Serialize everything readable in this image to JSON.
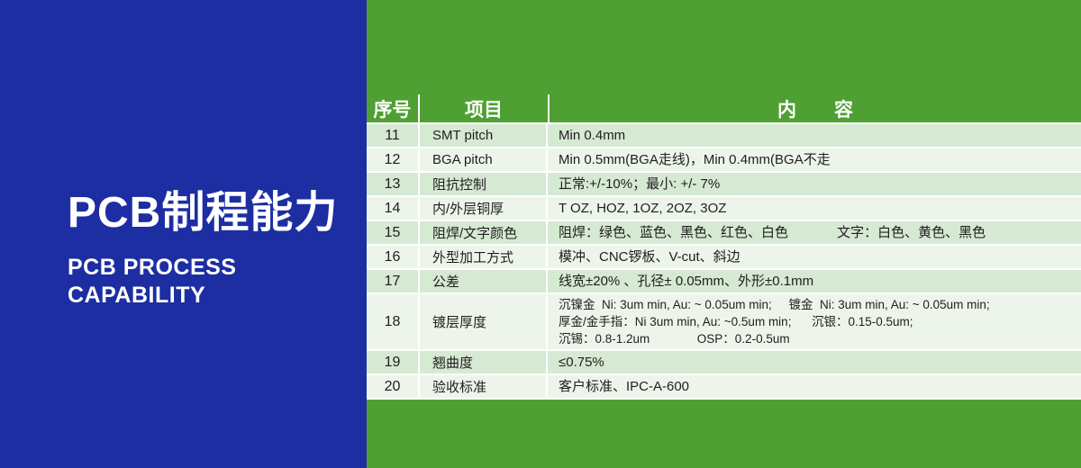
{
  "colors": {
    "panel_blue": "#1c2ea2",
    "panel_green": "#4fa032",
    "row_tint": "#d6e9d3",
    "row_light": "#edf5eb",
    "header_text": "#ffffff",
    "body_text": "#1e1e1e"
  },
  "left_panel": {
    "title_cn": "PCB制程能力",
    "title_en_line1": "PCB PROCESS",
    "title_en_line2": "CAPABILITY"
  },
  "table": {
    "headers": [
      "序号",
      "项目",
      "内　　容"
    ],
    "rows": [
      {
        "no": "11",
        "item": "SMT pitch",
        "content_lines": [
          "Min 0.4mm"
        ]
      },
      {
        "no": "12",
        "item": "BGA pitch",
        "content_lines": [
          "Min 0.5mm(BGA走线)，Min 0.4mm(BGA不走"
        ]
      },
      {
        "no": "13",
        "item": "阻抗控制",
        "content_lines": [
          "正常:+/-10%；最小: +/- 7%"
        ]
      },
      {
        "no": "14",
        "item": "内/外层铜厚",
        "content_lines": [
          "T OZ, HOZ, 1OZ, 2OZ, 3OZ"
        ]
      },
      {
        "no": "15",
        "item": "阻焊/文字颜色",
        "content_lines": [
          "阻焊：绿色、蓝色、黑色、红色、白色             文字：白色、黄色、黑色"
        ]
      },
      {
        "no": "16",
        "item": "外型加工方式",
        "content_lines": [
          "模冲、CNC锣板、V-cut、斜边"
        ]
      },
      {
        "no": "17",
        "item": "公差",
        "content_lines": [
          "线宽±20% 、孔径± 0.05mm、外形±0.1mm"
        ]
      },
      {
        "no": "18",
        "item": "镀层厚度",
        "content_lines": [
          "沉镍金  Ni: 3um min, Au: ~ 0.05um min;     镀金  Ni: 3um min, Au: ~ 0.05um min;",
          "厚金/金手指：Ni 3um min, Au: ~0.5um min;      沉银：0.15-0.5um;",
          "沉锡：0.8-1.2um              OSP：0.2-0.5um"
        ]
      },
      {
        "no": "19",
        "item": "翘曲度",
        "content_lines": [
          "≤0.75%"
        ]
      },
      {
        "no": "20",
        "item": "验收标准",
        "content_lines": [
          "客户标准、IPC-A-600"
        ]
      }
    ]
  }
}
